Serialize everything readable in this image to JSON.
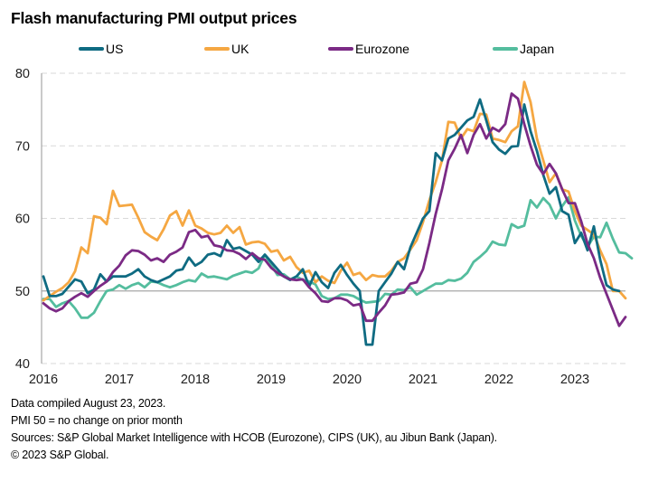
{
  "chart_data": {
    "type": "line",
    "title": "Flash manufacturing PMI output prices",
    "xlabel": "",
    "ylabel": "",
    "ylim": [
      40,
      80
    ],
    "yticks": [
      40,
      50,
      60,
      70,
      80
    ],
    "xticks": [
      "2016",
      "2017",
      "2018",
      "2019",
      "2020",
      "2021",
      "2022",
      "2023"
    ],
    "x_start": "2016-01",
    "x_frequency": "monthly",
    "grid": "horizontal dashed",
    "reference_line": 50,
    "legend_position": "top",
    "series": [
      {
        "name": "US",
        "color": "#0f6b82",
        "values": [
          52.0,
          49.3,
          49.3,
          49.6,
          50.6,
          51.6,
          51.3,
          49.7,
          50.2,
          52.3,
          51.3,
          52.0,
          52.0,
          52.0,
          52.4,
          53.0,
          52.0,
          51.5,
          51.2,
          51.6,
          52.0,
          52.8,
          53.0,
          54.6,
          53.5,
          54.0,
          55.0,
          55.2,
          54.8,
          57.0,
          55.8,
          56.0,
          55.5,
          55.0,
          54.0,
          55.0,
          54.0,
          53.0,
          52.0,
          51.5,
          52.0,
          53.0,
          50.6,
          52.6,
          51.2,
          50.4,
          52.5,
          53.6,
          52.2,
          51.0,
          50.0,
          42.6,
          42.6,
          50.0,
          51.2,
          52.4,
          54.0,
          53.0,
          56.0,
          58.0,
          60.0,
          61.0,
          69.0,
          68.0,
          71.0,
          71.5,
          72.5,
          73.5,
          74.0,
          76.4,
          73.5,
          70.5,
          69.5,
          68.9,
          69.9,
          70.0,
          75.7,
          72.0,
          69.3,
          66.0,
          63.4,
          64.3,
          61.0,
          60.5,
          56.6,
          58.0,
          55.6,
          58.9,
          54.3,
          50.8,
          50.2,
          50.0
        ]
      },
      {
        "name": "UK",
        "color": "#f5a742",
        "values": [
          48.7,
          49.3,
          49.9,
          50.4,
          51.2,
          52.7,
          56.0,
          55.2,
          60.3,
          60.1,
          59.2,
          63.8,
          61.7,
          61.8,
          61.9,
          60.1,
          58.1,
          57.5,
          57.0,
          58.5,
          60.4,
          61.0,
          59.0,
          61.1,
          59.0,
          58.6,
          58.0,
          57.8,
          58.0,
          59.0,
          58.0,
          58.8,
          56.4,
          56.7,
          56.8,
          56.5,
          55.4,
          55.6,
          54.2,
          54.7,
          53.3,
          52.5,
          52.8,
          51.2,
          52.0,
          51.4,
          51.1,
          52.8,
          53.9,
          52.2,
          52.5,
          51.5,
          52.2,
          52.0,
          52.0,
          52.8,
          54.0,
          54.5,
          55.7,
          57.0,
          59.5,
          62.5,
          65.0,
          68.0,
          73.3,
          73.2,
          71.0,
          72.3,
          72.0,
          74.4,
          74.3,
          71.0,
          70.8,
          70.5,
          72.0,
          72.7,
          78.8,
          76.0,
          71.0,
          68.0,
          65.0,
          66.2,
          64.0,
          63.7,
          61.0,
          59.0,
          58.4,
          57.8,
          55.6,
          53.7,
          50.0,
          50.0,
          49.0
        ]
      },
      {
        "name": "Eurozone",
        "color": "#7b2a85",
        "values": [
          48.3,
          47.6,
          47.2,
          47.6,
          48.6,
          49.2,
          49.7,
          49.2,
          50.0,
          50.7,
          51.3,
          52.6,
          53.5,
          54.9,
          55.6,
          55.5,
          55.0,
          54.2,
          54.5,
          54.0,
          55.0,
          55.4,
          56.0,
          58.1,
          58.4,
          57.4,
          57.6,
          56.3,
          56.1,
          55.6,
          55.5,
          55.1,
          54.4,
          55.2,
          54.5,
          54.3,
          53.2,
          52.5,
          52.0,
          51.6,
          51.5,
          51.6,
          50.5,
          49.7,
          48.6,
          48.5,
          49.0,
          49.0,
          48.7,
          48.0,
          48.2,
          45.9,
          45.9,
          47.0,
          48.0,
          49.5,
          49.6,
          49.8,
          51.0,
          51.2,
          53.0,
          56.6,
          60.6,
          64.0,
          68.0,
          69.6,
          71.5,
          69.0,
          71.5,
          73.0,
          71.0,
          72.5,
          72.0,
          73.0,
          77.2,
          76.5,
          73.0,
          70.0,
          67.4,
          66.1,
          67.5,
          66.2,
          64.0,
          62.1,
          62.1,
          59.6,
          56.5,
          54.5,
          51.8,
          49.6,
          47.4,
          45.2,
          46.4
        ]
      },
      {
        "name": "Japan",
        "color": "#54bd9e",
        "values": [
          48.9,
          48.9,
          47.8,
          48.3,
          48.6,
          47.6,
          46.3,
          46.3,
          47.0,
          48.6,
          50.0,
          50.2,
          50.8,
          50.3,
          50.8,
          51.1,
          50.5,
          51.3,
          51.2,
          50.8,
          50.5,
          50.8,
          51.2,
          51.5,
          51.3,
          52.4,
          51.9,
          52.0,
          51.8,
          51.6,
          52.1,
          52.4,
          52.7,
          52.5,
          53.1,
          55.0,
          53.6,
          52.2,
          52.3,
          51.6,
          52.0,
          51.5,
          51.3,
          50.9,
          49.3,
          48.9,
          49.0,
          49.5,
          49.5,
          49.3,
          48.8,
          48.4,
          48.5,
          48.6,
          49.6,
          49.5,
          50.2,
          50.1,
          50.5,
          49.5,
          50.0,
          50.5,
          51.0,
          51.0,
          51.5,
          51.4,
          51.7,
          52.5,
          54.0,
          54.7,
          55.5,
          56.8,
          56.4,
          56.3,
          59.2,
          58.7,
          59.0,
          62.5,
          61.5,
          62.8,
          61.9,
          60.0,
          61.7,
          62.9,
          59.7,
          57.6,
          56.1,
          57.5,
          57.4,
          59.4,
          57.2,
          55.3,
          55.2,
          54.5
        ]
      }
    ]
  },
  "footnotes": [
    "Data compiled August 23, 2023.",
    "PMI 50 = no change on prior month",
    "Sources: S&P Global Market Intelligence with HCOB (Eurozone), CIPS (UK), au Jibun Bank (Japan).",
    "© 2023 S&P Global."
  ]
}
